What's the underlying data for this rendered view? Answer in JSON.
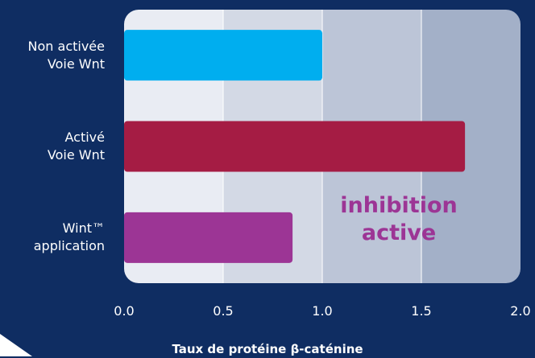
{
  "chart_data": {
    "type": "barh",
    "categories": [
      "Non activée\nVoie Wnt",
      "Activé\nVoie Wnt",
      "Wint™\napplication"
    ],
    "values": [
      1.0,
      1.72,
      0.85
    ],
    "colors": [
      "#00aeef",
      "#a51c44",
      "#9c3595"
    ],
    "xlabel": "Taux de protéine β-caténine",
    "annotation": "inhibition\nactive",
    "xlim": [
      0,
      2
    ],
    "xticks": [
      {
        "value": 0,
        "label": "0.0"
      },
      0.5,
      {
        "value": 1,
        "label": "1.0"
      },
      1.5,
      {
        "value": 2,
        "label": "2.0"
      }
    ],
    "grid": true
  }
}
